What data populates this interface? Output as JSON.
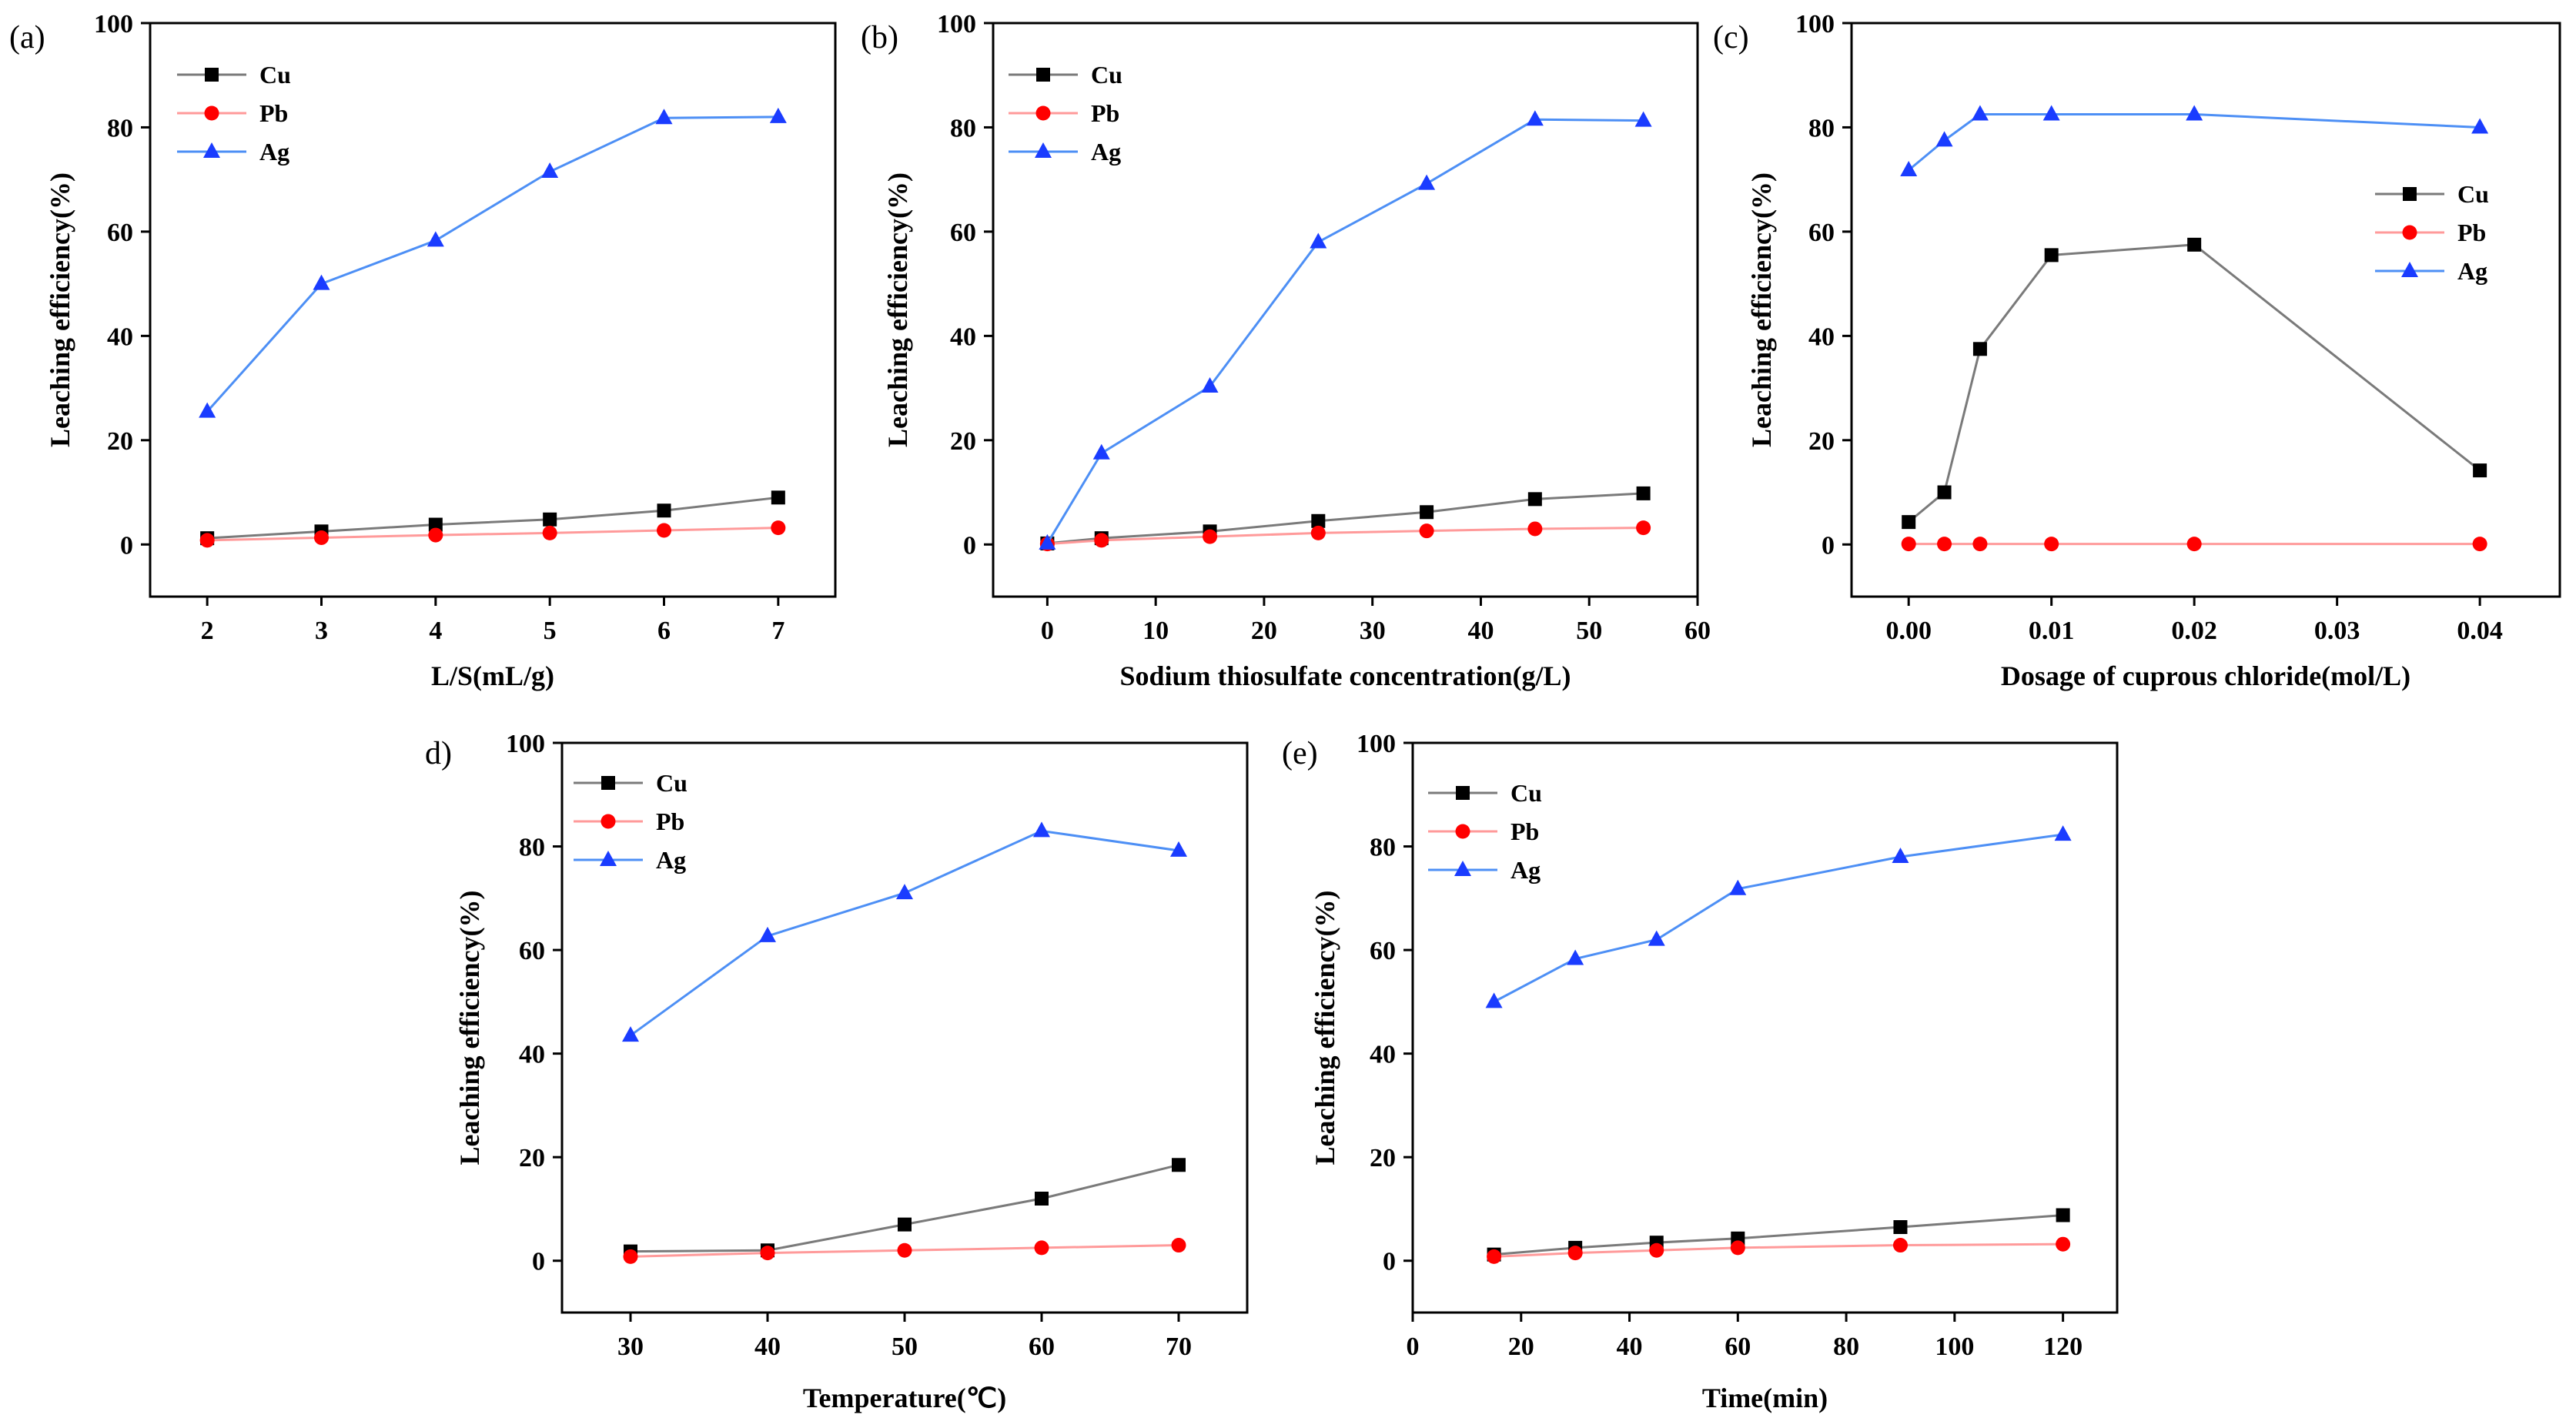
{
  "series_styles": {
    "Cu": {
      "color": "#000000",
      "line_color": "#7a7a7a",
      "marker": "square"
    },
    "Pb": {
      "color": "#ff0000",
      "line_color": "#ff9a9a",
      "marker": "circle"
    },
    "Ag": {
      "color": "#1a3cff",
      "line_color": "#4d8ff5",
      "marker": "triangle"
    }
  },
  "chart_data": [
    {
      "type": "line",
      "panel_label": "(a)",
      "xlabel": "L/S(mL/g)",
      "ylabel": "Leaching efficiency(%)",
      "xlim": [
        1.5,
        7.5
      ],
      "ylim": [
        -10,
        100
      ],
      "xticks": [
        2,
        3,
        4,
        5,
        6,
        7
      ],
      "xtick_labels": [
        "2",
        "3",
        "4",
        "5",
        "6",
        "7"
      ],
      "yticks": [
        0,
        20,
        40,
        60,
        80,
        100
      ],
      "ytick_labels": [
        "0",
        "20",
        "40",
        "60",
        "80",
        "100"
      ],
      "legend": "top-left",
      "legend_labels": [
        "Cu",
        "Pb",
        "Ag"
      ],
      "series": [
        {
          "name": "Cu",
          "x": [
            2,
            3,
            4,
            5,
            6,
            7
          ],
          "values": [
            1.2,
            2.5,
            3.8,
            4.8,
            6.5,
            9.0
          ]
        },
        {
          "name": "Pb",
          "x": [
            2,
            3,
            4,
            5,
            6,
            7
          ],
          "values": [
            0.8,
            1.3,
            1.8,
            2.2,
            2.7,
            3.2
          ]
        },
        {
          "name": "Ag",
          "x": [
            2,
            3,
            4,
            5,
            6,
            7
          ],
          "values": [
            25.5,
            50.0,
            58.3,
            71.5,
            81.8,
            82.0
          ]
        }
      ]
    },
    {
      "type": "line",
      "panel_label": "(b)",
      "xlabel": "Sodium thiosulfate concentration(g/L)",
      "ylabel": "Leaching efficiency(%)",
      "xlim": [
        -5,
        60
      ],
      "ylim": [
        -10,
        100
      ],
      "xticks": [
        0,
        10,
        20,
        30,
        40,
        50,
        60
      ],
      "xtick_labels": [
        "0",
        "10",
        "20",
        "30",
        "40",
        "50",
        "60"
      ],
      "yticks": [
        0,
        20,
        40,
        60,
        80,
        100
      ],
      "ytick_labels": [
        "0",
        "20",
        "40",
        "60",
        "80",
        "100"
      ],
      "legend": "top-left",
      "legend_labels": [
        "Cu",
        "Pb",
        "Ag"
      ],
      "series": [
        {
          "name": "Cu",
          "x": [
            0,
            5,
            15,
            25,
            35,
            45,
            55
          ],
          "values": [
            0.2,
            1.2,
            2.5,
            4.5,
            6.2,
            8.7,
            9.8
          ]
        },
        {
          "name": "Pb",
          "x": [
            0,
            5,
            15,
            25,
            35,
            45,
            55
          ],
          "values": [
            0.1,
            0.8,
            1.5,
            2.2,
            2.6,
            3.0,
            3.2
          ]
        },
        {
          "name": "Ag",
          "x": [
            0,
            5,
            15,
            25,
            35,
            45,
            55
          ],
          "values": [
            0.2,
            17.5,
            30.3,
            58.0,
            69.2,
            81.5,
            81.3
          ]
        }
      ]
    },
    {
      "type": "line",
      "panel_label": "(c)",
      "xlabel": "Dosage of cuprous chloride(mol/L)",
      "ylabel": "Leaching efficiency(%)",
      "xlim": [
        -0.004,
        0.0456
      ],
      "ylim": [
        -10,
        100
      ],
      "xticks": [
        0,
        0.01,
        0.02,
        0.03,
        0.04
      ],
      "xtick_labels": [
        "0.00",
        "0.01",
        "0.02",
        "0.03",
        "0.04"
      ],
      "yticks": [
        0,
        20,
        40,
        60,
        80,
        100
      ],
      "ytick_labels": [
        "0",
        "20",
        "40",
        "60",
        "80",
        "100"
      ],
      "legend": "center-right",
      "legend_labels": [
        "Cu",
        "Pb",
        "Ag"
      ],
      "series": [
        {
          "name": "Cu",
          "x": [
            0,
            0.0025,
            0.005,
            0.01,
            0.02,
            0.04
          ],
          "values": [
            4.3,
            10.0,
            37.5,
            55.5,
            57.5,
            14.2
          ]
        },
        {
          "name": "Pb",
          "x": [
            0,
            0.0025,
            0.005,
            0.01,
            0.02,
            0.04
          ],
          "values": [
            0.1,
            0.1,
            0.1,
            0.1,
            0.1,
            0.1
          ]
        },
        {
          "name": "Ag",
          "x": [
            0,
            0.0025,
            0.005,
            0.01,
            0.02,
            0.04
          ],
          "values": [
            71.8,
            77.5,
            82.5,
            82.5,
            82.5,
            80.0
          ]
        }
      ]
    },
    {
      "type": "line",
      "panel_label": "d)",
      "xlabel": "Temperature(℃)",
      "ylabel": "Leaching efficiency(%)",
      "xlim": [
        25,
        75
      ],
      "ylim": [
        -10,
        100
      ],
      "xticks": [
        30,
        40,
        50,
        60,
        70
      ],
      "xtick_labels": [
        "30",
        "40",
        "50",
        "60",
        "70"
      ],
      "yticks": [
        0,
        20,
        40,
        60,
        80,
        100
      ],
      "ytick_labels": [
        "0",
        "20",
        "40",
        "60",
        "80",
        "100"
      ],
      "legend": "top-left",
      "legend_labels": [
        "Cu",
        "Pb",
        "Ag"
      ],
      "series": [
        {
          "name": "Cu",
          "x": [
            30,
            40,
            50,
            60,
            70
          ],
          "values": [
            1.8,
            2.0,
            7.0,
            12.0,
            18.5
          ]
        },
        {
          "name": "Pb",
          "x": [
            30,
            40,
            50,
            60,
            70
          ],
          "values": [
            0.8,
            1.5,
            2.0,
            2.5,
            3.0
          ]
        },
        {
          "name": "Ag",
          "x": [
            30,
            40,
            50,
            60,
            70
          ],
          "values": [
            43.5,
            62.7,
            71.0,
            83.0,
            79.2
          ]
        }
      ]
    },
    {
      "type": "line",
      "panel_label": "(e)",
      "xlabel": "Time(min)",
      "ylabel": "Leaching efficiency(%)",
      "xlim": [
        0,
        130
      ],
      "ylim": [
        -10,
        100
      ],
      "xticks": [
        0,
        20,
        40,
        60,
        80,
        100,
        120
      ],
      "xtick_labels": [
        "0",
        "20",
        "40",
        "60",
        "80",
        "100",
        "120"
      ],
      "yticks": [
        0,
        20,
        40,
        60,
        80,
        100
      ],
      "ytick_labels": [
        "0",
        "20",
        "40",
        "60",
        "80",
        "100"
      ],
      "legend": "top-left",
      "legend_labels": [
        "Cu",
        "Pb",
        "Ag"
      ],
      "series": [
        {
          "name": "Cu",
          "x": [
            15,
            30,
            45,
            60,
            90,
            120
          ],
          "values": [
            1.2,
            2.5,
            3.5,
            4.3,
            6.5,
            8.8
          ]
        },
        {
          "name": "Pb",
          "x": [
            15,
            30,
            45,
            60,
            90,
            120
          ],
          "values": [
            0.8,
            1.5,
            2.0,
            2.5,
            3.0,
            3.2
          ]
        },
        {
          "name": "Ag",
          "x": [
            15,
            30,
            45,
            60,
            90,
            120
          ],
          "values": [
            50.0,
            58.3,
            62.0,
            71.8,
            78.0,
            82.3
          ]
        }
      ]
    }
  ]
}
